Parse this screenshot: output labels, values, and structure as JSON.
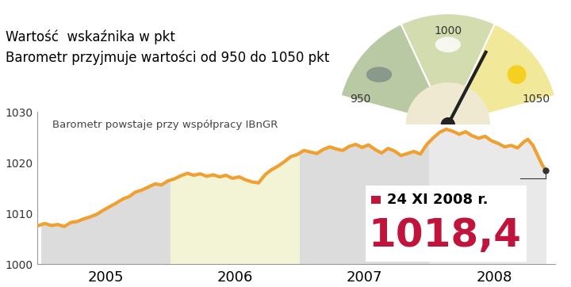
{
  "chart_data": {
    "type": "line",
    "title": "Wartość  wskaźnika w pkt",
    "subtitle": "Barometr przyjmuje wartości od 950 do 1050 pkt",
    "note": "Barometr powstaje przy współpracy IBnGR",
    "x": [
      2004.97,
      2005.03,
      2005.08,
      2005.13,
      2005.18,
      2005.23,
      2005.28,
      2005.33,
      2005.38,
      2005.43,
      2005.48,
      2005.53,
      2005.58,
      2005.63,
      2005.68,
      2005.73,
      2005.78,
      2005.83,
      2005.88,
      2005.93,
      2005.98,
      2006.03,
      2006.08,
      2006.13,
      2006.18,
      2006.23,
      2006.28,
      2006.33,
      2006.38,
      2006.43,
      2006.48,
      2006.53,
      2006.58,
      2006.63,
      2006.68,
      2006.73,
      2006.78,
      2006.83,
      2006.88,
      2006.93,
      2006.98,
      2007.03,
      2007.08,
      2007.13,
      2007.18,
      2007.23,
      2007.28,
      2007.33,
      2007.38,
      2007.43,
      2007.48,
      2007.53,
      2007.58,
      2007.63,
      2007.68,
      2007.73,
      2007.78,
      2007.83,
      2007.88,
      2007.93,
      2007.98,
      2008.03,
      2008.08,
      2008.13,
      2008.18,
      2008.23,
      2008.28,
      2008.33,
      2008.38,
      2008.43,
      2008.48,
      2008.53,
      2008.58,
      2008.63,
      2008.68,
      2008.73,
      2008.76,
      2008.8,
      2008.84,
      2008.87,
      2008.9
    ],
    "values": [
      1007.5,
      1008.0,
      1007.6,
      1007.8,
      1007.4,
      1008.2,
      1008.4,
      1008.9,
      1009.3,
      1009.8,
      1010.6,
      1011.3,
      1012.0,
      1012.8,
      1013.3,
      1014.2,
      1014.6,
      1015.2,
      1015.8,
      1015.6,
      1016.4,
      1016.8,
      1017.4,
      1017.9,
      1017.5,
      1017.8,
      1017.3,
      1017.6,
      1017.2,
      1017.5,
      1016.9,
      1017.2,
      1016.6,
      1016.2,
      1016.0,
      1017.6,
      1018.6,
      1019.3,
      1020.2,
      1021.2,
      1021.6,
      1022.4,
      1022.1,
      1021.8,
      1022.6,
      1023.1,
      1022.7,
      1022.4,
      1023.2,
      1023.6,
      1023.0,
      1023.5,
      1022.6,
      1021.9,
      1022.8,
      1022.3,
      1021.4,
      1021.8,
      1022.2,
      1021.7,
      1023.6,
      1024.9,
      1026.0,
      1026.6,
      1026.2,
      1025.6,
      1026.1,
      1025.3,
      1024.8,
      1025.2,
      1024.3,
      1023.8,
      1023.1,
      1023.4,
      1022.9,
      1024.1,
      1024.6,
      1023.4,
      1021.2,
      1019.6,
      1018.4
    ],
    "color": "#f0a030",
    "xlim": [
      2004.97,
      2008.97
    ],
    "xticks": [
      {
        "value": 2005.5,
        "label": "2005"
      },
      {
        "value": 2006.5,
        "label": "2006"
      },
      {
        "value": 2007.5,
        "label": "2007"
      },
      {
        "value": 2008.5,
        "label": "2008"
      }
    ],
    "ylim": [
      1000,
      1030
    ],
    "yticks": [
      1000,
      1010,
      1020,
      1030
    ],
    "grid": false,
    "annotation": {
      "text": "24 XI 2008 r.",
      "x": 2008.9,
      "value": 1018.4,
      "value_label": "1018,4"
    },
    "gauge": {
      "min": 950,
      "max": 1050,
      "ticks": [
        950,
        1000,
        1050
      ],
      "value": 1018.4
    }
  }
}
